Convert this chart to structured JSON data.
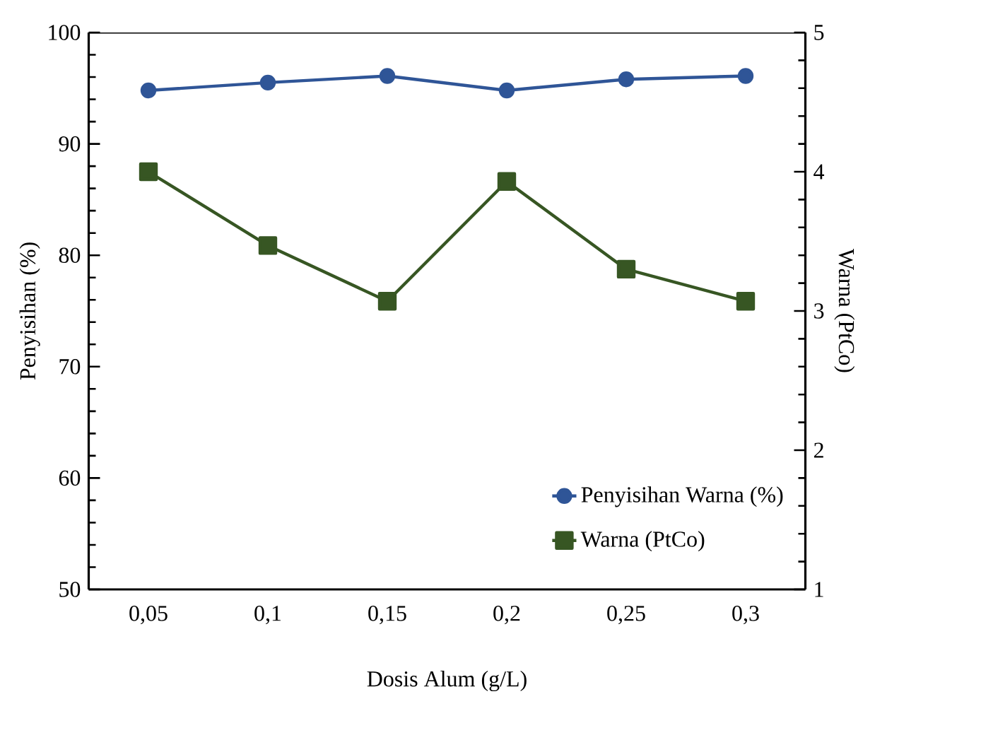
{
  "chart_data": {
    "type": "line",
    "xlabel": "Dosis Alum (g/L)",
    "ylabel": "Penyisihan (%)",
    "y2label": "Warna (PtCo)",
    "categories": [
      "0,05",
      "0,1",
      "0,15",
      "0,2",
      "0,25",
      "0,3"
    ],
    "series": [
      {
        "name": "Penyisihan Warna (%)",
        "color": "#2f5597",
        "marker": "circle",
        "values": [
          94.8,
          95.5,
          96.1,
          94.8,
          95.8,
          96.1
        ]
      },
      {
        "name": "Warna (PtCo)",
        "color": "#375623",
        "marker": "square",
        "axis": "y2",
        "values": [
          4.0,
          3.47,
          3.07,
          3.93,
          3.3,
          3.07
        ]
      }
    ],
    "ylim": [
      50,
      100
    ],
    "yticks": [
      50,
      60,
      70,
      80,
      90,
      100
    ],
    "y2lim": [
      1,
      5
    ],
    "y2ticks": [
      1,
      2,
      3,
      4,
      5
    ],
    "grid": false,
    "legend": "bottom right",
    "line_style": "solid"
  }
}
